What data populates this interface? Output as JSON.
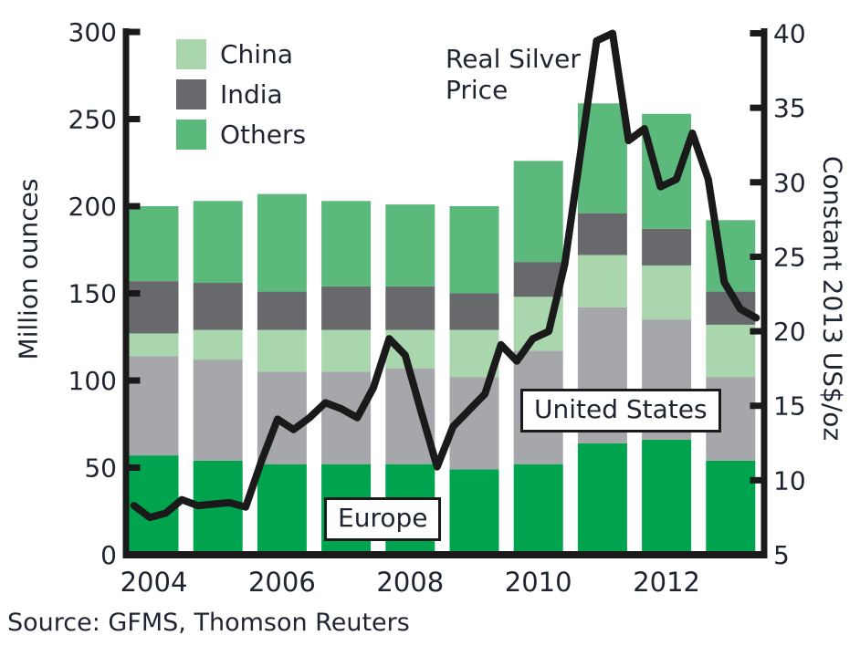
{
  "chart": {
    "price_annotation_line1": "Real Silver",
    "price_annotation_line2": "Price",
    "europe_label": "Europe",
    "united_states_label": "United States",
    "left_axis_title": "Million ounces",
    "right_axis_title": "Constant 2013 US$/oz",
    "source": "Source: GFMS, Thomson Reuters",
    "text_color": "#1e2430",
    "axis_color": "#1a1a1a",
    "background": "#ffffff"
  },
  "legend": {
    "items": [
      {
        "label": "China",
        "color": "#aad6ae"
      },
      {
        "label": "India",
        "color": "#68696c"
      },
      {
        "label": "Others",
        "color": "#5cb97c"
      }
    ]
  },
  "chart_data": {
    "type": "bar+line",
    "bar_type": "stacked",
    "bar_unit": "Million ounces",
    "categories": [
      2004,
      2005,
      2006,
      2007,
      2008,
      2009,
      2010,
      2011,
      2012,
      2013
    ],
    "stack_order_bottom_to_top": [
      "Europe",
      "United States",
      "China",
      "India",
      "Others"
    ],
    "series": [
      {
        "name": "Europe",
        "color": "#00a44f",
        "values": [
          57,
          54,
          52,
          52,
          52,
          49,
          52,
          64,
          66,
          54
        ]
      },
      {
        "name": "United States",
        "color": "#a5a7aa",
        "values": [
          57,
          58,
          53,
          53,
          55,
          53,
          65,
          78,
          69,
          48
        ]
      },
      {
        "name": "China",
        "color": "#aad6ae",
        "values": [
          13,
          17,
          24,
          24,
          22,
          27,
          31,
          30,
          31,
          30
        ]
      },
      {
        "name": "India",
        "color": "#68696c",
        "values": [
          30,
          27,
          22,
          25,
          25,
          21,
          20,
          24,
          21,
          19
        ]
      },
      {
        "name": "Others",
        "color": "#5cb97c",
        "values": [
          43,
          47,
          56,
          49,
          47,
          50,
          58,
          63,
          66,
          41
        ]
      }
    ],
    "bar_totals": [
      200,
      203,
      207,
      203,
      201,
      200,
      226,
      259,
      253,
      192
    ],
    "line_series": {
      "name": "Real Silver Price",
      "unit": "Constant 2013 US$/oz",
      "color": "#1a1a1a",
      "frequency": "quarterly",
      "start": "2004-Q1",
      "end": "2013-Q4",
      "values": [
        8.3,
        7.5,
        7.8,
        8.7,
        8.3,
        8.4,
        8.5,
        8.2,
        11.3,
        14.1,
        13.4,
        14.2,
        15.2,
        14.8,
        14.2,
        16.2,
        19.5,
        18.4,
        14.6,
        10.9,
        13.6,
        14.7,
        15.8,
        19.1,
        18.0,
        19.5,
        20.0,
        24.5,
        32.0,
        39.5,
        40.0,
        32.8,
        33.6,
        29.7,
        30.2,
        33.3,
        30.2,
        23.3,
        21.5,
        20.9
      ]
    },
    "left_axis": {
      "label": "Million ounces",
      "range": [
        0,
        300
      ],
      "ticks": [
        0,
        50,
        100,
        150,
        200,
        250,
        300
      ]
    },
    "right_axis": {
      "label": "Constant 2013 US$/oz",
      "range": [
        5,
        40
      ],
      "ticks": [
        5,
        10,
        15,
        20,
        25,
        30,
        35,
        40
      ]
    },
    "x_tick_labels": [
      "2004",
      "2006",
      "2008",
      "2010",
      "2012"
    ],
    "grid": false,
    "legend_position": "top-left-inside",
    "source": "Source: GFMS, Thomson Reuters"
  }
}
